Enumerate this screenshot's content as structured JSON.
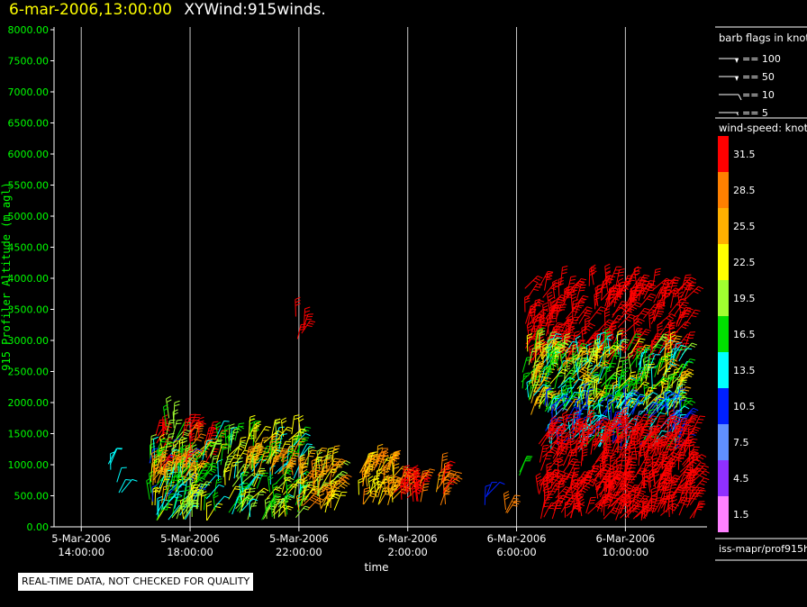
{
  "header": {
    "date_label": "6-mar-2006,13:00:00",
    "plot_name": "XYWind:915winds."
  },
  "footer": {
    "disclaimer": "REAL-TIME DATA, NOT CHECKED FOR QUALITY",
    "source_label": "iss-mapr/prof915h"
  },
  "chart_data": {
    "type": "scatter",
    "xlabel": "time",
    "ylabel": "915 Profiler Altitude (m agl)",
    "ylim": [
      0,
      8000
    ],
    "xlim": [
      "5-Mar-2006 13:00:00",
      "6-Mar-2006 13:00:00"
    ],
    "y_ticks": [
      "0.00",
      "500.00",
      "1000.00",
      "1500.00",
      "2000.00",
      "2500.00",
      "3000.00",
      "3500.00",
      "4000.00",
      "4500.00",
      "5000.00",
      "5500.00",
      "6000.00",
      "6500.00",
      "7000.00",
      "7500.00",
      "8000.00"
    ],
    "x_ticks": [
      {
        "date": "5-Mar-2006",
        "time": "14:00:00",
        "hours": 1
      },
      {
        "date": "5-Mar-2006",
        "time": "18:00:00",
        "hours": 5
      },
      {
        "date": "5-Mar-2006",
        "time": "22:00:00",
        "hours": 9
      },
      {
        "date": "6-Mar-2006",
        "time": "2:00:00",
        "hours": 13
      },
      {
        "date": "6-Mar-2006",
        "time": "6:00:00",
        "hours": 17
      },
      {
        "date": "6-Mar-2006",
        "time": "10:00:00",
        "hours": 21
      }
    ],
    "vertical_gridlines": true,
    "legend_barbs": {
      "title": "barb flags in knots",
      "items": [
        {
          "label": "== 100",
          "kind": "flag"
        },
        {
          "label": "== 50",
          "kind": "flag"
        },
        {
          "label": "== 10",
          "kind": "full"
        },
        {
          "label": "== 5",
          "kind": "half"
        }
      ]
    },
    "legend_speed": {
      "title": "wind-speed: knots",
      "bins": [
        {
          "label": "31.5",
          "color": "#ff0000"
        },
        {
          "label": "28.5",
          "color": "#ff8000"
        },
        {
          "label": "25.5",
          "color": "#ffb000"
        },
        {
          "label": "22.5",
          "color": "#ffff00"
        },
        {
          "label": "19.5",
          "color": "#a0ff30"
        },
        {
          "label": "16.5",
          "color": "#00e000"
        },
        {
          "label": "13.5",
          "color": "#00ffff"
        },
        {
          "label": "10.5",
          "color": "#0020ff"
        },
        {
          "label": "7.5",
          "color": "#6090ff"
        },
        {
          "label": "4.5",
          "color": "#9030ff"
        },
        {
          "label": "1.5",
          "color": "#ff80ff"
        }
      ]
    },
    "wind_clusters": [
      {
        "t0": 1.95,
        "t1": 2.2,
        "alt0": 800,
        "alt1": 1100,
        "spd0": 12,
        "spd1": 15,
        "n": 3
      },
      {
        "t0": 2.3,
        "t1": 2.5,
        "alt0": 500,
        "alt1": 800,
        "spd0": 12,
        "spd1": 15,
        "n": 3
      },
      {
        "t0": 3.55,
        "t1": 4.05,
        "alt0": 1150,
        "alt1": 1600,
        "spd0": 30,
        "spd1": 34,
        "n": 6
      },
      {
        "t0": 3.5,
        "t1": 5.2,
        "alt0": 100,
        "alt1": 1200,
        "spd0": 11,
        "spd1": 25,
        "n": 110
      },
      {
        "t0": 3.6,
        "t1": 5.2,
        "alt0": 700,
        "alt1": 1100,
        "spd0": 26,
        "spd1": 31,
        "n": 25
      },
      {
        "t0": 4.1,
        "t1": 4.6,
        "alt0": 1200,
        "alt1": 1750,
        "spd0": 17,
        "spd1": 21,
        "n": 10
      },
      {
        "t0": 4.6,
        "t1": 5.3,
        "alt0": 1200,
        "alt1": 1600,
        "spd0": 29,
        "spd1": 33,
        "n": 10
      },
      {
        "t0": 5.3,
        "t1": 5.9,
        "alt0": 1000,
        "alt1": 1500,
        "spd0": 29,
        "spd1": 33,
        "n": 8
      },
      {
        "t0": 5.2,
        "t1": 9.1,
        "alt0": 100,
        "alt1": 1500,
        "spd0": 13,
        "spd1": 24,
        "n": 170
      },
      {
        "t0": 7.0,
        "t1": 9.0,
        "alt0": 800,
        "alt1": 1200,
        "spd0": 24,
        "spd1": 28,
        "n": 25
      },
      {
        "t0": 9.0,
        "t1": 10.3,
        "alt0": 200,
        "alt1": 1100,
        "spd0": 20,
        "spd1": 29,
        "n": 60
      },
      {
        "t0": 8.7,
        "t1": 9.2,
        "alt0": 2900,
        "alt1": 3400,
        "spd0": 30,
        "spd1": 34,
        "n": 5
      },
      {
        "t0": 11.2,
        "t1": 12.5,
        "alt0": 300,
        "alt1": 1000,
        "spd0": 22,
        "spd1": 29,
        "n": 55
      },
      {
        "t0": 12.5,
        "t1": 13.5,
        "alt0": 400,
        "alt1": 750,
        "spd0": 28,
        "spd1": 33,
        "n": 28
      },
      {
        "t0": 14.0,
        "t1": 14.4,
        "alt0": 300,
        "alt1": 900,
        "spd0": 26,
        "spd1": 32,
        "n": 14
      },
      {
        "t0": 15.7,
        "t1": 16.0,
        "alt0": 300,
        "alt1": 600,
        "spd0": 10,
        "spd1": 12,
        "n": 3
      },
      {
        "t0": 16.6,
        "t1": 16.9,
        "alt0": 100,
        "alt1": 400,
        "spd0": 28,
        "spd1": 32,
        "n": 3
      },
      {
        "t0": 17.0,
        "t1": 17.35,
        "alt0": 2200,
        "alt1": 2600,
        "spd0": 15,
        "spd1": 18,
        "n": 4
      },
      {
        "t0": 17.1,
        "t1": 17.3,
        "alt0": 700,
        "alt1": 950,
        "spd0": 16,
        "spd1": 19,
        "n": 2
      },
      {
        "t0": 17.3,
        "t1": 23.2,
        "alt0": 2600,
        "alt1": 3900,
        "spd0": 30,
        "spd1": 35,
        "n": 230
      },
      {
        "t0": 17.4,
        "t1": 23.1,
        "alt0": 1800,
        "alt1": 2900,
        "spd0": 13,
        "spd1": 26,
        "n": 300
      },
      {
        "t0": 18.0,
        "t1": 23.1,
        "alt0": 1200,
        "alt1": 2000,
        "spd0": 8,
        "spd1": 16,
        "n": 150
      },
      {
        "t0": 17.8,
        "t1": 23.5,
        "alt0": 100,
        "alt1": 1600,
        "spd0": 30,
        "spd1": 35,
        "n": 380
      }
    ]
  }
}
